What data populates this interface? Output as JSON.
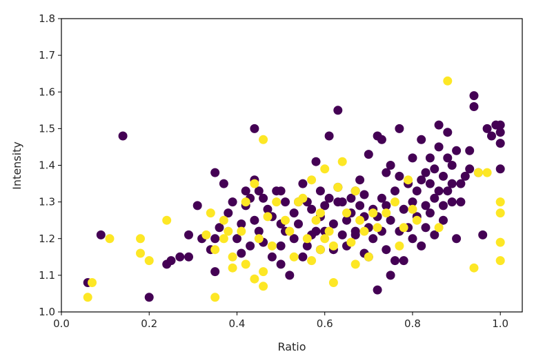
{
  "chart_data": {
    "type": "scatter",
    "xlabel": "Ratio",
    "ylabel": "Intensity",
    "xlim": [
      0.0,
      1.05
    ],
    "ylim": [
      1.0,
      1.8
    ],
    "xticks": [
      "0.0",
      "0.2",
      "0.4",
      "0.6",
      "0.8",
      "1.0"
    ],
    "yticks": [
      "1.0",
      "1.1",
      "1.2",
      "1.3",
      "1.4",
      "1.5",
      "1.6",
      "1.7",
      "1.8"
    ],
    "grid": false,
    "legend": "none",
    "colors": {
      "group_a": "#440154",
      "group_b": "#fde725"
    },
    "series": [
      {
        "color": "#440154",
        "points": [
          [
            0.06,
            1.08
          ],
          [
            0.09,
            1.21
          ],
          [
            0.14,
            1.48
          ],
          [
            0.2,
            1.04
          ],
          [
            0.24,
            1.13
          ],
          [
            0.25,
            1.14
          ],
          [
            0.27,
            1.15
          ],
          [
            0.29,
            1.21
          ],
          [
            0.29,
            1.15
          ],
          [
            0.31,
            1.29
          ],
          [
            0.32,
            1.2
          ],
          [
            0.34,
            1.17
          ],
          [
            0.35,
            1.38
          ],
          [
            0.35,
            1.11
          ],
          [
            0.35,
            1.2
          ],
          [
            0.36,
            1.23
          ],
          [
            0.37,
            1.35
          ],
          [
            0.38,
            1.27
          ],
          [
            0.39,
            1.3
          ],
          [
            0.4,
            1.2
          ],
          [
            0.41,
            1.16
          ],
          [
            0.41,
            1.24
          ],
          [
            0.42,
            1.29
          ],
          [
            0.42,
            1.33
          ],
          [
            0.43,
            1.18
          ],
          [
            0.43,
            1.31
          ],
          [
            0.44,
            1.36
          ],
          [
            0.44,
            1.5
          ],
          [
            0.44,
            1.25
          ],
          [
            0.45,
            1.33
          ],
          [
            0.45,
            1.22
          ],
          [
            0.46,
            1.31
          ],
          [
            0.46,
            1.19
          ],
          [
            0.47,
            1.28
          ],
          [
            0.48,
            1.15
          ],
          [
            0.48,
            1.26
          ],
          [
            0.49,
            1.33
          ],
          [
            0.5,
            1.33
          ],
          [
            0.5,
            1.24
          ],
          [
            0.5,
            1.13
          ],
          [
            0.5,
            1.18
          ],
          [
            0.51,
            1.3
          ],
          [
            0.51,
            1.22
          ],
          [
            0.52,
            1.1
          ],
          [
            0.53,
            1.2
          ],
          [
            0.53,
            1.27
          ],
          [
            0.54,
            1.3
          ],
          [
            0.54,
            1.24
          ],
          [
            0.55,
            1.15
          ],
          [
            0.55,
            1.35
          ],
          [
            0.56,
            1.3
          ],
          [
            0.56,
            1.18
          ],
          [
            0.57,
            1.21
          ],
          [
            0.57,
            1.28
          ],
          [
            0.58,
            1.41
          ],
          [
            0.58,
            1.22
          ],
          [
            0.59,
            1.33
          ],
          [
            0.59,
            1.26
          ],
          [
            0.59,
            1.17
          ],
          [
            0.6,
            1.22
          ],
          [
            0.6,
            1.29
          ],
          [
            0.61,
            1.31
          ],
          [
            0.61,
            1.48
          ],
          [
            0.62,
            1.24
          ],
          [
            0.62,
            1.17
          ],
          [
            0.63,
            1.55
          ],
          [
            0.63,
            1.3
          ],
          [
            0.63,
            1.34
          ],
          [
            0.64,
            1.3
          ],
          [
            0.64,
            1.21
          ],
          [
            0.65,
            1.25
          ],
          [
            0.65,
            1.18
          ],
          [
            0.66,
            1.31
          ],
          [
            0.66,
            1.27
          ],
          [
            0.67,
            1.22
          ],
          [
            0.67,
            1.33
          ],
          [
            0.67,
            1.21
          ],
          [
            0.68,
            1.29
          ],
          [
            0.68,
            1.36
          ],
          [
            0.69,
            1.26
          ],
          [
            0.69,
            1.32
          ],
          [
            0.69,
            1.16
          ],
          [
            0.7,
            1.43
          ],
          [
            0.7,
            1.23
          ],
          [
            0.7,
            1.15
          ],
          [
            0.71,
            1.28
          ],
          [
            0.71,
            1.2
          ],
          [
            0.72,
            1.06
          ],
          [
            0.72,
            1.48
          ],
          [
            0.72,
            1.26
          ],
          [
            0.73,
            1.47
          ],
          [
            0.73,
            1.31
          ],
          [
            0.73,
            1.22
          ],
          [
            0.74,
            1.38
          ],
          [
            0.74,
            1.17
          ],
          [
            0.74,
            1.29
          ],
          [
            0.75,
            1.4
          ],
          [
            0.75,
            1.25
          ],
          [
            0.75,
            1.1
          ],
          [
            0.76,
            1.33
          ],
          [
            0.76,
            1.14
          ],
          [
            0.77,
            1.5
          ],
          [
            0.77,
            1.22
          ],
          [
            0.77,
            1.37
          ],
          [
            0.78,
            1.28
          ],
          [
            0.78,
            1.14
          ],
          [
            0.79,
            1.35
          ],
          [
            0.79,
            1.23
          ],
          [
            0.8,
            1.42
          ],
          [
            0.8,
            1.3
          ],
          [
            0.8,
            1.2
          ],
          [
            0.81,
            1.33
          ],
          [
            0.81,
            1.26
          ],
          [
            0.82,
            1.47
          ],
          [
            0.82,
            1.36
          ],
          [
            0.82,
            1.18
          ],
          [
            0.83,
            1.38
          ],
          [
            0.83,
            1.29
          ],
          [
            0.83,
            1.23
          ],
          [
            0.84,
            1.35
          ],
          [
            0.84,
            1.42
          ],
          [
            0.84,
            1.27
          ],
          [
            0.85,
            1.31
          ],
          [
            0.85,
            1.21
          ],
          [
            0.85,
            1.39
          ],
          [
            0.86,
            1.51
          ],
          [
            0.86,
            1.33
          ],
          [
            0.86,
            1.45
          ],
          [
            0.87,
            1.29
          ],
          [
            0.87,
            1.37
          ],
          [
            0.87,
            1.25
          ],
          [
            0.88,
            1.42
          ],
          [
            0.88,
            1.33
          ],
          [
            0.88,
            1.49
          ],
          [
            0.89,
            1.35
          ],
          [
            0.89,
            1.3
          ],
          [
            0.89,
            1.4
          ],
          [
            0.9,
            1.44
          ],
          [
            0.9,
            1.2
          ],
          [
            0.91,
            1.35
          ],
          [
            0.91,
            1.3
          ],
          [
            0.92,
            1.37
          ],
          [
            0.93,
            1.44
          ],
          [
            0.93,
            1.39
          ],
          [
            0.94,
            1.59
          ],
          [
            0.94,
            1.56
          ],
          [
            0.95,
            1.38
          ],
          [
            0.96,
            1.21
          ],
          [
            0.97,
            1.5
          ],
          [
            0.98,
            1.48
          ],
          [
            0.99,
            1.51
          ],
          [
            1.0,
            1.49
          ],
          [
            1.0,
            1.46
          ],
          [
            1.0,
            1.39
          ],
          [
            1.0,
            1.51
          ]
        ]
      },
      {
        "color": "#fde725",
        "points": [
          [
            0.06,
            1.04
          ],
          [
            0.07,
            1.08
          ],
          [
            0.11,
            1.2
          ],
          [
            0.18,
            1.2
          ],
          [
            0.18,
            1.16
          ],
          [
            0.2,
            1.14
          ],
          [
            0.24,
            1.25
          ],
          [
            0.33,
            1.21
          ],
          [
            0.34,
            1.27
          ],
          [
            0.35,
            1.04
          ],
          [
            0.35,
            1.17
          ],
          [
            0.37,
            1.2
          ],
          [
            0.37,
            1.25
          ],
          [
            0.38,
            1.22
          ],
          [
            0.39,
            1.12
          ],
          [
            0.39,
            1.15
          ],
          [
            0.41,
            1.22
          ],
          [
            0.42,
            1.3
          ],
          [
            0.42,
            1.13
          ],
          [
            0.44,
            1.35
          ],
          [
            0.44,
            1.09
          ],
          [
            0.45,
            1.2
          ],
          [
            0.46,
            1.47
          ],
          [
            0.46,
            1.11
          ],
          [
            0.46,
            1.07
          ],
          [
            0.47,
            1.26
          ],
          [
            0.48,
            1.18
          ],
          [
            0.49,
            1.3
          ],
          [
            0.51,
            1.25
          ],
          [
            0.52,
            1.22
          ],
          [
            0.53,
            1.15
          ],
          [
            0.54,
            1.3
          ],
          [
            0.55,
            1.31
          ],
          [
            0.56,
            1.2
          ],
          [
            0.57,
            1.14
          ],
          [
            0.57,
            1.36
          ],
          [
            0.58,
            1.25
          ],
          [
            0.59,
            1.17
          ],
          [
            0.59,
            1.27
          ],
          [
            0.6,
            1.2
          ],
          [
            0.6,
            1.39
          ],
          [
            0.61,
            1.22
          ],
          [
            0.62,
            1.18
          ],
          [
            0.62,
            1.08
          ],
          [
            0.63,
            1.34
          ],
          [
            0.64,
            1.41
          ],
          [
            0.65,
            1.27
          ],
          [
            0.66,
            1.19
          ],
          [
            0.67,
            1.13
          ],
          [
            0.67,
            1.33
          ],
          [
            0.68,
            1.25
          ],
          [
            0.69,
            1.22
          ],
          [
            0.7,
            1.15
          ],
          [
            0.71,
            1.27
          ],
          [
            0.72,
            1.23
          ],
          [
            0.74,
            1.27
          ],
          [
            0.76,
            1.3
          ],
          [
            0.77,
            1.18
          ],
          [
            0.78,
            1.23
          ],
          [
            0.79,
            1.36
          ],
          [
            0.8,
            1.28
          ],
          [
            0.81,
            1.25
          ],
          [
            0.86,
            1.23
          ],
          [
            0.88,
            1.63
          ],
          [
            0.94,
            1.12
          ],
          [
            0.95,
            1.38
          ],
          [
            0.97,
            1.38
          ],
          [
            1.0,
            1.3
          ],
          [
            1.0,
            1.27
          ],
          [
            1.0,
            1.19
          ],
          [
            1.0,
            1.14
          ]
        ]
      }
    ]
  }
}
